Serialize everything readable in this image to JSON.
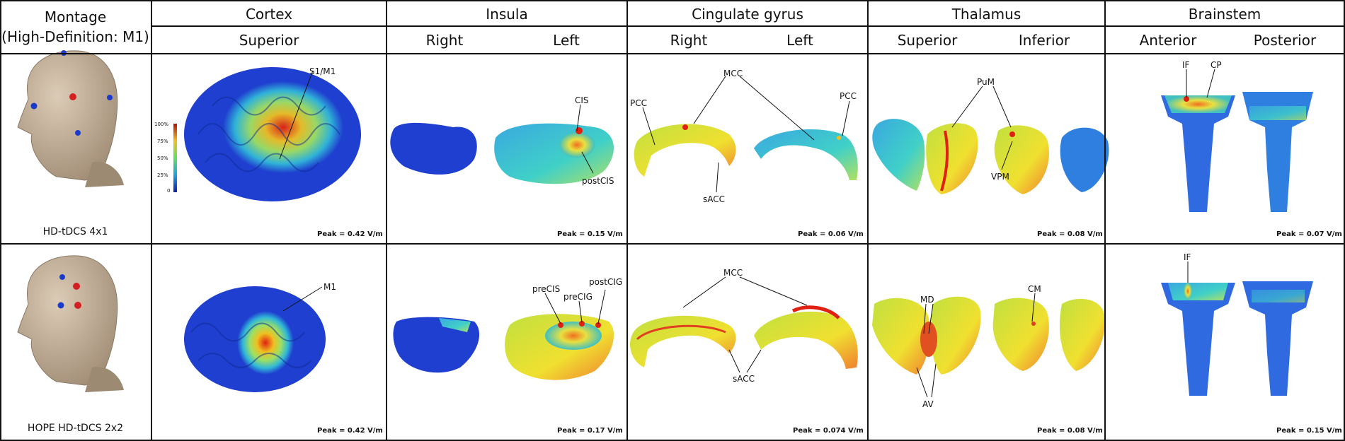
{
  "montage_header": {
    "line1": "Montage",
    "line2": "(High-Definition: M1)"
  },
  "regions": [
    {
      "name": "Cortex",
      "views": [
        "Superior"
      ]
    },
    {
      "name": "Insula",
      "views": [
        "Right",
        "Left"
      ]
    },
    {
      "name": "Cingulate gyrus",
      "views": [
        "Right",
        "Left"
      ]
    },
    {
      "name": "Thalamus",
      "views": [
        "Superior",
        "Inferior"
      ]
    },
    {
      "name": "Brainstem",
      "views": [
        "Anterior",
        "Posterior"
      ]
    }
  ],
  "rows": [
    {
      "montage": "HD-tDCS 4x1",
      "peaks": [
        "Peak = 0.42 V/m",
        "Peak = 0.15 V/m",
        "Peak = 0.06 V/m",
        "Peak = 0.08 V/m",
        "Peak = 0.07 V/m"
      ],
      "labels": {
        "cortex": "S1/M1",
        "insula_a": "CIS",
        "insula_b": "postCIS",
        "cing_a": "PCC",
        "cing_b": "MCC",
        "cing_c": "PCC",
        "cing_d": "sACC",
        "thal_a": "PuM",
        "thal_b": "VPM",
        "bs_a": "IF",
        "bs_b": "CP"
      }
    },
    {
      "montage": "HOPE HD-tDCS 2x2",
      "peaks": [
        "Peak = 0.42 V/m",
        "Peak = 0.17 V/m",
        "Peak = 0.074 V/m",
        "Peak = 0.08 V/m",
        "Peak = 0.15 V/m"
      ],
      "labels": {
        "cortex": "M1",
        "insula_a": "preCIS",
        "insula_b": "preCIG",
        "insula_c": "postCIG",
        "cing_a": "MCC",
        "cing_b": "sACC",
        "thal_a": "MD",
        "thal_b": "AV",
        "thal_c": "CM",
        "bs_a": "IF"
      }
    }
  ],
  "colorbar": {
    "ticks": [
      "100%",
      "75%",
      "50%",
      "25%",
      "0"
    ]
  },
  "colors": {
    "grid": "#111111",
    "skin": "#c9b8a3",
    "low": "#1f3fd0",
    "mid": "#37c8c8",
    "high": "#e02010"
  }
}
